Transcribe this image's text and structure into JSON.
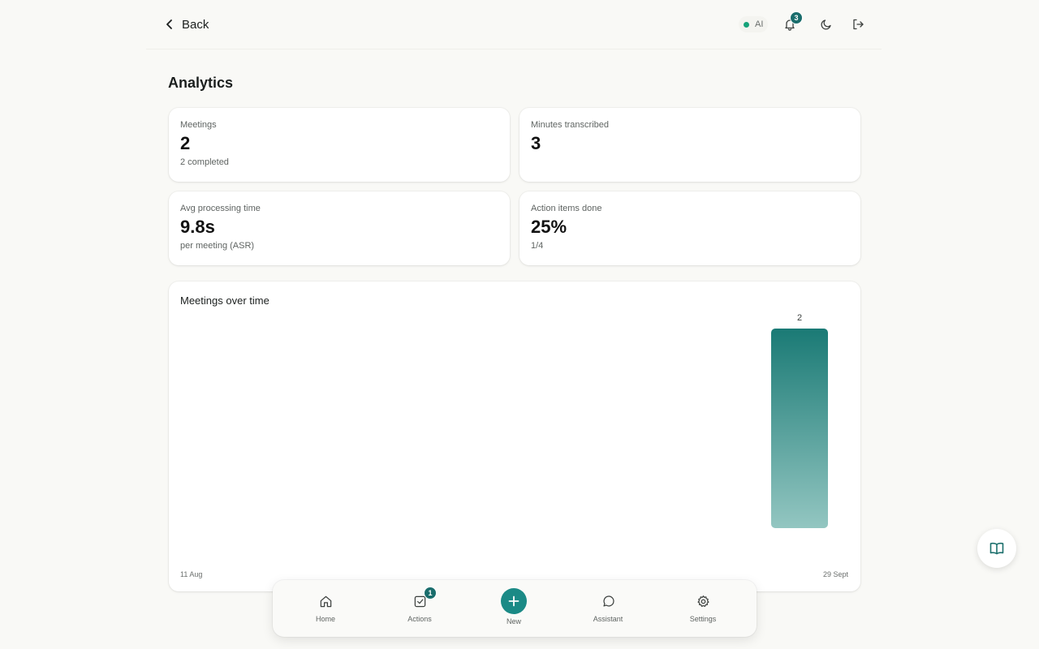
{
  "header": {
    "back_label": "Back",
    "ai_label": "AI",
    "notification_count": "3"
  },
  "page": {
    "title": "Analytics"
  },
  "stats": [
    {
      "label": "Meetings",
      "value": "2",
      "sub": "2 completed"
    },
    {
      "label": "Minutes transcribed",
      "value": "3",
      "sub": ""
    },
    {
      "label": "Avg processing time",
      "value": "9.8s",
      "sub": "per meeting (ASR)"
    },
    {
      "label": "Action items done",
      "value": "25%",
      "sub": "1/4"
    }
  ],
  "chart": {
    "title": "Meetings over time",
    "x_start": "11 Aug",
    "x_end": "29 Sept"
  },
  "chart_data": {
    "type": "bar",
    "title": "Meetings over time",
    "categories": [
      "29 Sept"
    ],
    "values": [
      2
    ],
    "x_range": [
      "11 Aug",
      "29 Sept"
    ],
    "bar_label": "2",
    "grid": false,
    "colors": {
      "bar_top": "#1a7a75",
      "bar_bottom": "#93c6c1"
    }
  },
  "nav": {
    "home": "Home",
    "actions": "Actions",
    "actions_badge": "1",
    "new": "New",
    "assistant": "Assistant",
    "settings": "Settings"
  },
  "icons": {
    "back": "chevron-left-icon",
    "bell": "bell-icon",
    "moon": "moon-icon",
    "logout": "logout-icon",
    "home": "home-icon",
    "actions": "checkbox-icon",
    "new": "plus-icon",
    "assistant": "chat-bubble-icon",
    "settings": "gear-icon",
    "book": "book-icon"
  },
  "colors": {
    "accent": "#1b8a86",
    "status_dot": "#16a37a",
    "badge": "#1a6d6c",
    "background": "#f9f9f6"
  }
}
